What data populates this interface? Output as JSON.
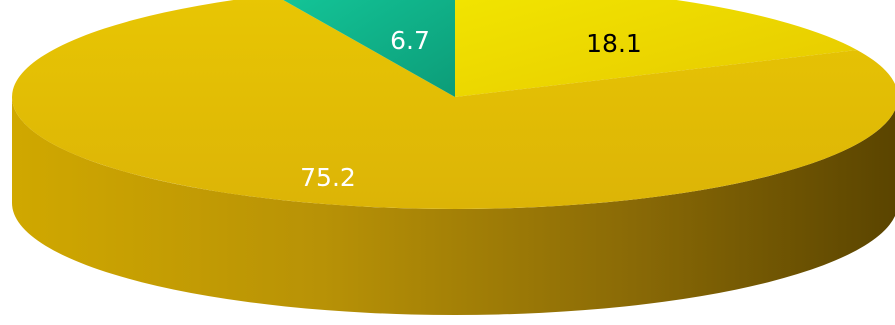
{
  "chart_data": {
    "type": "pie",
    "style": "3d",
    "slices": [
      {
        "label": "18.1",
        "value": 18.1,
        "color": "#eedd00",
        "label_color": "#000000"
      },
      {
        "label": "75.2",
        "value": 75.2,
        "color": "#e3bd05",
        "label_color": "#ffffff"
      },
      {
        "label": "6.7",
        "value": 6.7,
        "color": "#10b48c",
        "label_color": "#ffffff"
      }
    ],
    "colors": {
      "side_light": "#d0a800",
      "side_mid": "#9a7808",
      "side_dark": "#5a4400"
    }
  }
}
